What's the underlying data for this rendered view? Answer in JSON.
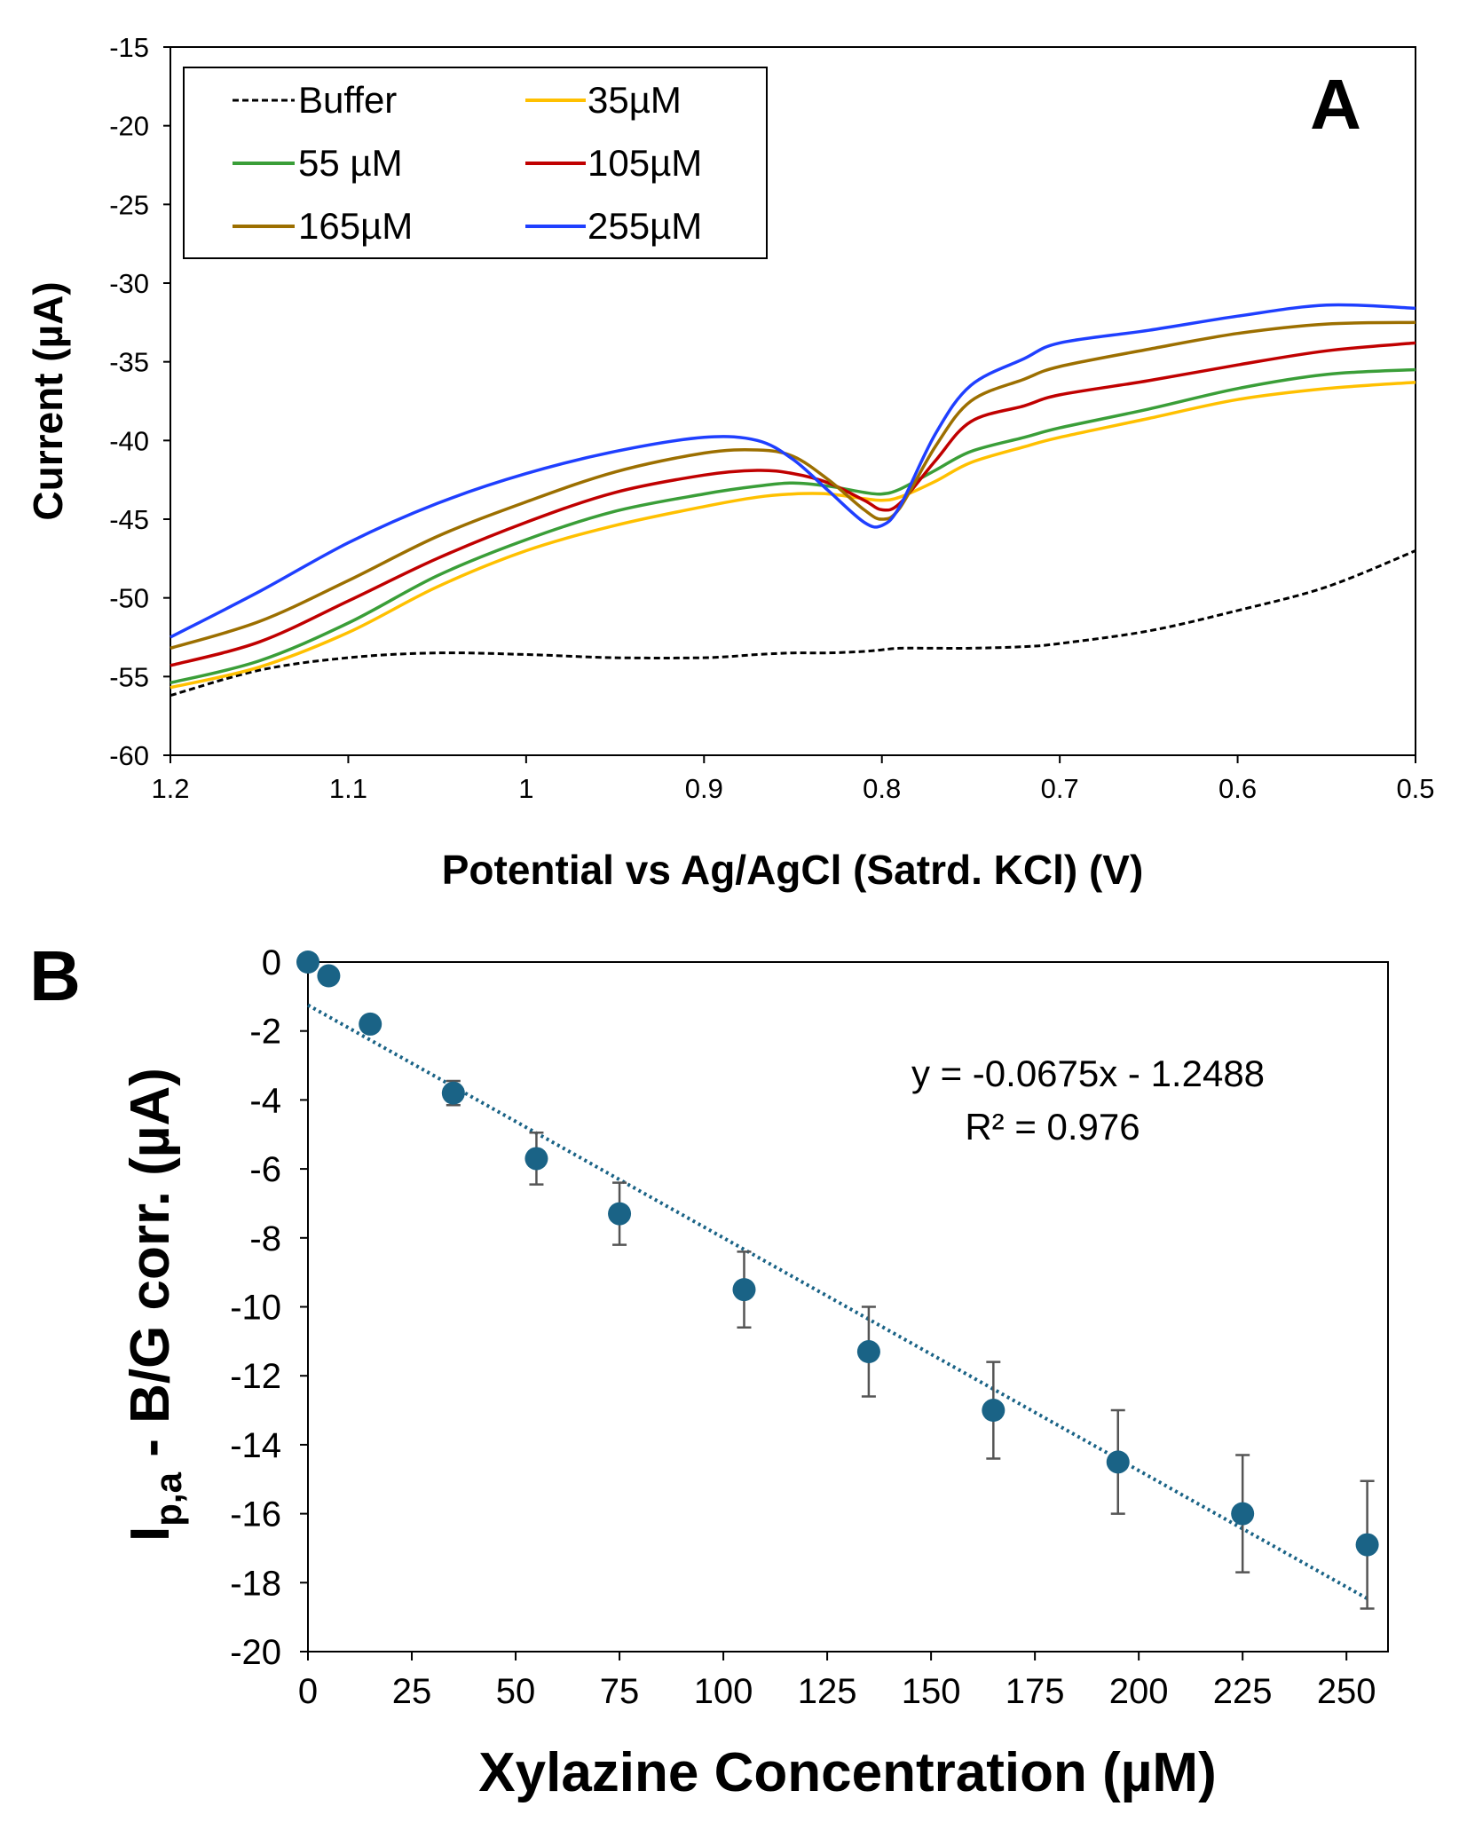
{
  "chart_data": [
    {
      "panel_label": "A",
      "type": "line",
      "xlabel": "Potential vs Ag/AgCl (Satrd. KCl) (V)",
      "ylabel": "Current (µA)",
      "xlim": [
        1.2,
        0.5
      ],
      "ylim": [
        -60,
        -15
      ],
      "x_ticks": [
        "1.2",
        "1.1",
        "1",
        "0.9",
        "0.8",
        "0.7",
        "0.6",
        "0.5"
      ],
      "y_ticks": [
        "-15",
        "-20",
        "-25",
        "-30",
        "-35",
        "-40",
        "-45",
        "-50",
        "-55",
        "-60"
      ],
      "x_tick_values": [
        1.2,
        1.1,
        1.0,
        0.9,
        0.8,
        0.7,
        0.6,
        0.5
      ],
      "y_tick_values": [
        -15,
        -20,
        -25,
        -30,
        -35,
        -40,
        -45,
        -50,
        -55,
        -60
      ],
      "legend_position": "top-left",
      "x": [
        1.2,
        1.15,
        1.1,
        1.05,
        1.0,
        0.95,
        0.9,
        0.87,
        0.85,
        0.83,
        0.81,
        0.8,
        0.79,
        0.77,
        0.75,
        0.72,
        0.7,
        0.65,
        0.6,
        0.55,
        0.5
      ],
      "series": [
        {
          "name": "Buffer",
          "color": "#000000",
          "dashed": true,
          "values": [
            -56.2,
            -54.6,
            -53.8,
            -53.5,
            -53.6,
            -53.8,
            -53.8,
            -53.6,
            -53.5,
            -53.5,
            -53.4,
            -53.3,
            -53.2,
            -53.2,
            -53.2,
            -53.1,
            -52.9,
            -52.1,
            -50.8,
            -49.3,
            -47.0
          ]
        },
        {
          "name": "35µM",
          "color": "#ffc000",
          "values": [
            -55.7,
            -54.4,
            -52.2,
            -49.3,
            -47.0,
            -45.4,
            -44.2,
            -43.6,
            -43.4,
            -43.4,
            -43.7,
            -43.8,
            -43.6,
            -42.6,
            -41.4,
            -40.4,
            -39.8,
            -38.6,
            -37.4,
            -36.7,
            -36.3
          ]
        },
        {
          "name": "55 µM",
          "color": "#3a9e38",
          "values": [
            -55.4,
            -54.0,
            -51.6,
            -48.6,
            -46.3,
            -44.5,
            -43.4,
            -42.9,
            -42.7,
            -42.9,
            -43.3,
            -43.4,
            -43.1,
            -41.9,
            -40.7,
            -39.8,
            -39.2,
            -38.0,
            -36.7,
            -35.8,
            -35.5
          ]
        },
        {
          "name": "105µM",
          "color": "#c00000",
          "values": [
            -54.3,
            -52.8,
            -50.2,
            -47.5,
            -45.2,
            -43.3,
            -42.2,
            -41.9,
            -42.1,
            -42.7,
            -43.8,
            -44.4,
            -44.0,
            -41.3,
            -38.8,
            -37.8,
            -37.1,
            -36.2,
            -35.2,
            -34.3,
            -33.8
          ]
        },
        {
          "name": "165µM",
          "color": "#9c6f00",
          "values": [
            -53.2,
            -51.5,
            -48.9,
            -46.1,
            -43.9,
            -42.0,
            -40.8,
            -40.6,
            -41.0,
            -42.5,
            -44.4,
            -45.0,
            -44.3,
            -40.4,
            -37.5,
            -36.1,
            -35.3,
            -34.2,
            -33.2,
            -32.6,
            -32.5
          ]
        },
        {
          "name": "255µM",
          "color": "#1f3fff",
          "values": [
            -52.5,
            -49.6,
            -46.5,
            -44.0,
            -42.1,
            -40.7,
            -39.8,
            -40.0,
            -41.2,
            -43.2,
            -45.2,
            -45.4,
            -44.2,
            -39.6,
            -36.5,
            -34.8,
            -33.8,
            -33.0,
            -32.1,
            -31.4,
            -31.6
          ]
        }
      ]
    },
    {
      "panel_label": "B",
      "type": "scatter",
      "xlabel": "Xylazine Concentration (µM)",
      "ylabel_main": "I",
      "ylabel_sub": "p,a",
      "ylabel_rest": " - B/G corr. (µA)",
      "xlim": [
        0,
        260
      ],
      "ylim": [
        -20,
        0
      ],
      "x_ticks": [
        "0",
        "25",
        "50",
        "75",
        "100",
        "125",
        "150",
        "175",
        "200",
        "225",
        "250"
      ],
      "y_ticks": [
        "0",
        "-2",
        "-4",
        "-6",
        "-8",
        "-10",
        "-12",
        "-14",
        "-16",
        "-18",
        "-20"
      ],
      "x_tick_values": [
        0,
        25,
        50,
        75,
        100,
        125,
        150,
        175,
        200,
        225,
        250
      ],
      "y_tick_values": [
        0,
        -2,
        -4,
        -6,
        -8,
        -10,
        -12,
        -14,
        -16,
        -18,
        -20
      ],
      "point_color": "#1a6386",
      "trend_color": "#1a6386",
      "x": [
        0,
        5,
        15,
        35,
        55,
        75,
        105,
        135,
        165,
        195,
        225,
        255
      ],
      "values": [
        0.0,
        -0.4,
        -1.8,
        -3.8,
        -5.7,
        -7.3,
        -9.5,
        -11.3,
        -13.0,
        -14.5,
        -16.0,
        -16.9
      ],
      "errors": [
        0.0,
        0.1,
        0.15,
        0.35,
        0.75,
        0.9,
        1.1,
        1.3,
        1.4,
        1.5,
        1.7,
        1.85
      ],
      "trendline": {
        "slope": -0.0675,
        "intercept": -1.2488,
        "x_range": [
          0,
          255
        ]
      },
      "equation": "y = -0.0675x - 1.2488",
      "r_squared": "R² = 0.976"
    }
  ]
}
